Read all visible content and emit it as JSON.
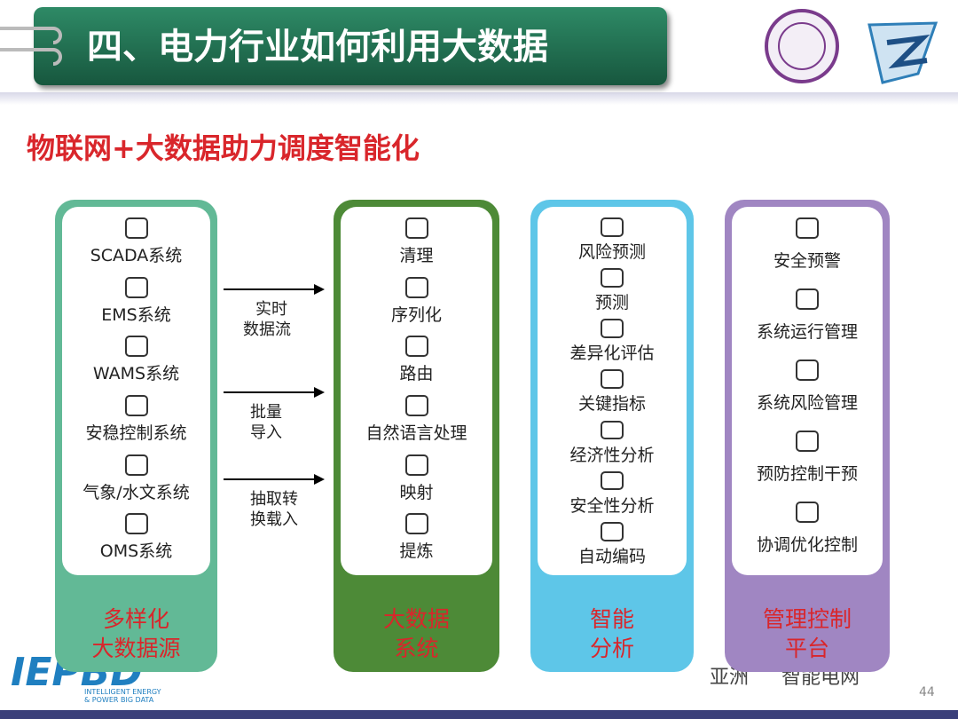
{
  "header": {
    "title": "四、电力行业如何利用大数据"
  },
  "subtitle": "物联网+大数据助力调度智能化",
  "columns": [
    {
      "items": [
        "SCADA系统",
        "EMS系统",
        "WAMS系统",
        "安稳控制系统",
        "气象/水文系统",
        "OMS系统"
      ],
      "footer": [
        "多样化",
        "大数据源"
      ]
    },
    {
      "items": [
        "清理",
        "序列化",
        "路由",
        "自然语言处理",
        "映射",
        "提炼"
      ],
      "footer": [
        "大数据",
        "系统"
      ]
    },
    {
      "items": [
        "风险预测",
        "预测",
        "差异化评估",
        "关键指标",
        "经济性分析",
        "安全性分析",
        "自动编码"
      ],
      "footer": [
        "智能",
        "分析"
      ]
    },
    {
      "items": [
        "安全预警",
        "系统运行管理",
        "系统风险管理",
        "预防控制干预",
        "协调优化控制"
      ],
      "footer": [
        "管理控制",
        "平台"
      ]
    }
  ],
  "arrows": [
    [
      "实时",
      "数据流"
    ],
    [
      "批量",
      "导入"
    ],
    [
      "抽取转",
      "换载入"
    ]
  ],
  "logo": {
    "mark": "IEPBD",
    "tagline": [
      "INTELLIGENT ENERGY",
      "& POWER BIG DATA"
    ]
  },
  "watermark": [
    "亚洲",
    "智能电网"
  ],
  "page_number": "44"
}
